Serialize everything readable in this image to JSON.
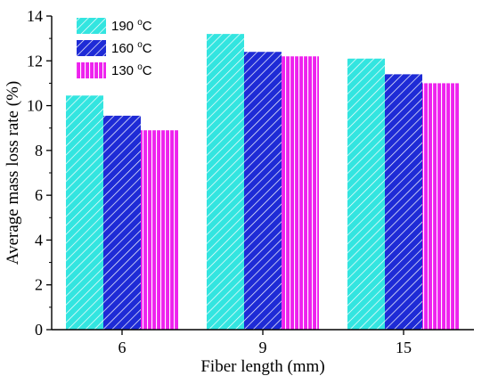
{
  "chart_data": {
    "type": "bar",
    "title": "",
    "xlabel": "Fiber length (mm)",
    "ylabel": "Average mass loss rate (%)",
    "categories": [
      "6",
      "9",
      "15"
    ],
    "ylim": [
      0,
      14
    ],
    "yticks": [
      "0",
      "2",
      "4",
      "6",
      "8",
      "10",
      "12",
      "14"
    ],
    "grid": false,
    "legend_position": "top-left",
    "series": [
      {
        "name": "190",
        "unit": "°C",
        "color": "#33e5e0",
        "hatch": "dense-diagonal",
        "values": [
          10.45,
          13.2,
          12.1
        ]
      },
      {
        "name": "160",
        "unit": "°C",
        "color": "#1e2bd6",
        "hatch": "diagonal",
        "values": [
          9.55,
          12.4,
          11.4
        ]
      },
      {
        "name": "130",
        "unit": "°C",
        "color": "#ee22ee",
        "hatch": "vertical",
        "values": [
          8.9,
          12.2,
          11.0
        ]
      }
    ]
  }
}
